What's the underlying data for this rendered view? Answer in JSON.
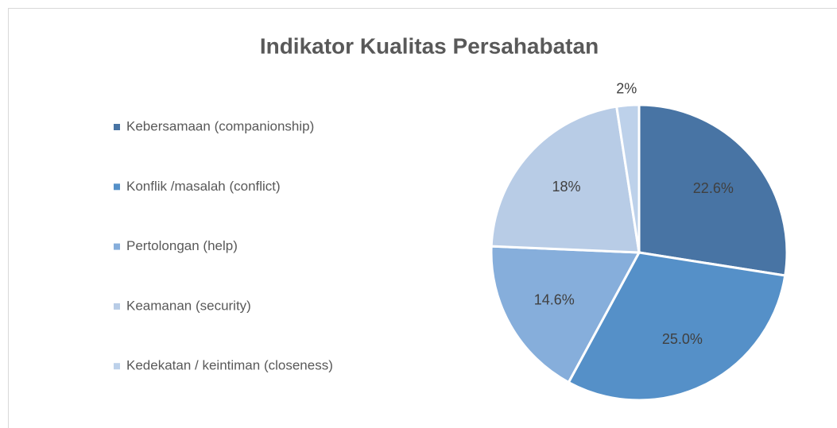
{
  "chart_data": {
    "type": "pie",
    "title": "Indikator Kualitas Persahabatan",
    "categories": [
      "Kebersamaan (companionship)",
      "Konflik /masalah (conflict)",
      "Pertolongan (help)",
      "Keamanan (security)",
      "Kedekatan / keintiman (closeness)"
    ],
    "values": [
      22.6,
      25.0,
      14.6,
      18,
      2
    ],
    "value_labels": [
      "22.6%",
      "25.0%",
      "14.6%",
      "18%",
      "2%"
    ],
    "colors": [
      "#4874a4",
      "#5590c8",
      "#86aedb",
      "#b8cce6",
      "#bdd1ea"
    ],
    "legend": "left"
  }
}
